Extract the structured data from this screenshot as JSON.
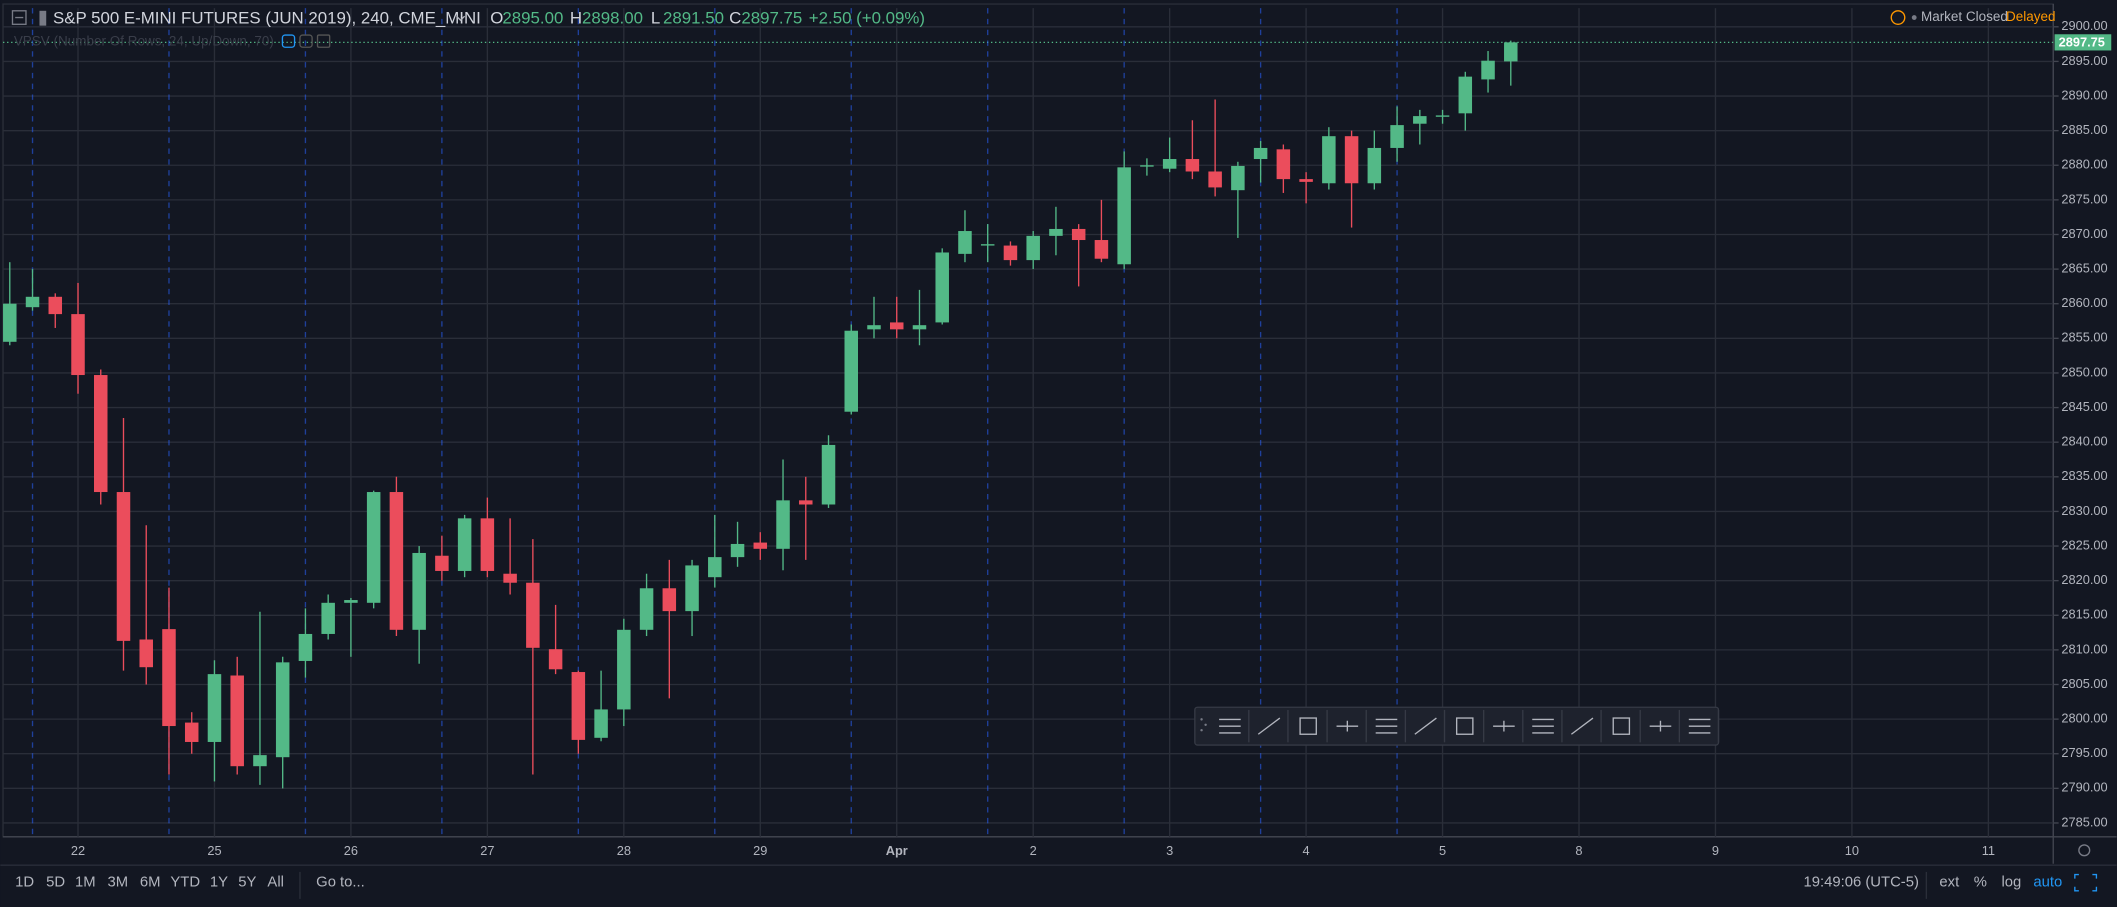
{
  "header": {
    "symbol": "S&P 500 E-MINI FUTURES (JUN 2019), 240, CME_MINI",
    "ohlc": [
      {
        "key": "O",
        "value": "2895.00"
      },
      {
        "key": "H",
        "value": "2898.00"
      },
      {
        "key": "L",
        "value": "2891.50"
      },
      {
        "key": "C",
        "value": "2897.75"
      }
    ],
    "change": "+2.50 (+0.09%)",
    "indicator": "VPSV (Number Of Rows, 24, Up/Down, 70)",
    "status": "Market Closed",
    "delay": "Delayed"
  },
  "chart_data": {
    "type": "candlestick",
    "categories": [
      null,
      null,
      null,
      "22",
      null,
      null,
      null,
      null,
      null,
      "25",
      null,
      null,
      null,
      null,
      null,
      "26",
      null,
      null,
      null,
      null,
      null,
      "27",
      null,
      null,
      null,
      null,
      null,
      "28",
      null,
      null,
      null,
      null,
      null,
      "29",
      null,
      null,
      null,
      null,
      null,
      "Apr",
      null,
      null,
      null,
      null,
      null,
      "2",
      null,
      null,
      null,
      null,
      null,
      "3",
      null,
      null,
      null,
      null,
      null,
      "4",
      null,
      null,
      null,
      null,
      null,
      "5",
      null,
      null,
      null,
      null,
      null,
      "8",
      null,
      null,
      null,
      null,
      null,
      "9",
      null,
      null,
      null,
      null,
      null,
      "10",
      null,
      null,
      null,
      null,
      null,
      "11"
    ],
    "open": [
      2854.5,
      2859.5,
      2861,
      2858.5,
      2849.7,
      2832.8,
      2811.5,
      2813,
      2799.5,
      2796.7,
      2806.3,
      2793.2,
      2794.5,
      2808.4,
      2812.3,
      2816.8,
      2816.8,
      2832.8,
      2812.9,
      2823.6,
      2821.4,
      2829,
      2821,
      2819.7,
      2810.1,
      2806.8,
      2797.3,
      2801.4,
      2812.9,
      2818.9,
      2815.6,
      2820.5,
      2823.4,
      2825.5,
      2824.6,
      2831.6,
      2831,
      2844.4,
      2856.3,
      2857.3,
      2856.3,
      2857.3,
      2867.2,
      2868.4,
      2868.4,
      2866.3,
      2869.8,
      2870.8,
      2869.2,
      2865.7,
      2879.8,
      2879.5,
      2880.9,
      2879.1,
      2876.4,
      2880.9,
      2882.3,
      2878,
      2877.4,
      2884.2,
      2877.4,
      2882.5,
      2886,
      2887,
      2887.5,
      2892.4,
      2895,
      null,
      null,
      null,
      null,
      null,
      null,
      null,
      null,
      null,
      null,
      null,
      null,
      null,
      null,
      null,
      null,
      null,
      null,
      null,
      null,
      null
    ],
    "high": [
      2866,
      2865,
      2861.5,
      2863,
      2850.5,
      2843.5,
      2828,
      2819,
      2801,
      2808.5,
      2809,
      2815.5,
      2809,
      2816,
      2818,
      2817.5,
      2833,
      2835,
      2825,
      2826.5,
      2829.5,
      2832,
      2829,
      2826,
      2816.5,
      2807,
      2807,
      2814.5,
      2821,
      2823,
      2823,
      2829.5,
      2828.5,
      2827,
      2837.5,
      2835,
      2841,
      2857,
      2861,
      2861,
      2862,
      2868,
      2873.5,
      2871.5,
      2869,
      2870.5,
      2874,
      2871.5,
      2875,
      2882,
      2881,
      2884,
      2886.5,
      2889.5,
      2880.5,
      2883.5,
      2883,
      2879,
      2885.5,
      2885,
      2885,
      2888.5,
      2888,
      2888,
      2893.5,
      2896.5,
      2898,
      null,
      null,
      null,
      null,
      null,
      null,
      null,
      null,
      null,
      null,
      null,
      null,
      null,
      null,
      null,
      null,
      null,
      null,
      null,
      null,
      null
    ],
    "low": [
      2854,
      2859,
      2856.5,
      2847,
      2831,
      2807,
      2805,
      2792,
      2795,
      2791,
      2792,
      2790.5,
      2790,
      2806,
      2811.5,
      2809,
      2816,
      2812,
      2808,
      2820,
      2820.5,
      2820.5,
      2818,
      2792,
      2806.5,
      2795,
      2796.8,
      2799,
      2812,
      2803,
      2812,
      2819,
      2822,
      2823,
      2821.5,
      2823,
      2830.5,
      2844,
      2855,
      2855,
      2854,
      2857,
      2866,
      2866,
      2865.5,
      2865,
      2867,
      2862.5,
      2866,
      2865,
      2878.5,
      2879,
      2878,
      2875.5,
      2869.5,
      2877.5,
      2876,
      2874.5,
      2876.5,
      2871,
      2876.5,
      2880.5,
      2883,
      2886,
      2885,
      2890.5,
      2891.5,
      null,
      null,
      null,
      null,
      null,
      null,
      null,
      null,
      null,
      null,
      null,
      null,
      null,
      null,
      null,
      null,
      null,
      null,
      null,
      null,
      null
    ],
    "close": [
      2860,
      2861,
      2858.5,
      2849.7,
      2832.8,
      2811.3,
      2807.5,
      2799,
      2796.7,
      2806.5,
      2793.2,
      2794.8,
      2808.2,
      2812.3,
      2816.8,
      2817.2,
      2832.8,
      2812.9,
      2824,
      2821.4,
      2829,
      2821.4,
      2819.7,
      2810.3,
      2807.2,
      2797,
      2801.4,
      2812.9,
      2818.9,
      2815.6,
      2822.2,
      2823.4,
      2825.3,
      2824.6,
      2831.6,
      2831,
      2839.6,
      2856.1,
      2856.9,
      2856.3,
      2856.9,
      2867.4,
      2870.5,
      2868.6,
      2866.3,
      2869.8,
      2870.8,
      2869.2,
      2866.5,
      2879.7,
      2880,
      2880.9,
      2879.1,
      2876.8,
      2879.9,
      2882.5,
      2878,
      2877.6,
      2884.2,
      2877.4,
      2882.5,
      2885.8,
      2887.1,
      2887.2,
      2892.8,
      2895.1,
      2897.75,
      null,
      null,
      null,
      null,
      null,
      null,
      null,
      null,
      null,
      null,
      null,
      null,
      null,
      null,
      null,
      null,
      null,
      null,
      null,
      null,
      null
    ],
    "up_color": "#53b987",
    "down_color": "#eb4d5c",
    "last_price": 2897.75,
    "ylim": [
      2783,
      2902.7
    ],
    "yticks": [
      {
        "value": 2785,
        "label": "2785.00"
      },
      {
        "value": 2790,
        "label": "2790.00"
      },
      {
        "value": 2795,
        "label": "2795.00"
      },
      {
        "value": 2800,
        "label": "2800.00"
      },
      {
        "value": 2805,
        "label": "2805.00"
      },
      {
        "value": 2810,
        "label": "2810.00"
      },
      {
        "value": 2815,
        "label": "2815.00"
      },
      {
        "value": 2820,
        "label": "2820.00"
      },
      {
        "value": 2825,
        "label": "2825.00"
      },
      {
        "value": 2830,
        "label": "2830.00"
      },
      {
        "value": 2835,
        "label": "2835.00"
      },
      {
        "value": 2840,
        "label": "2840.00"
      },
      {
        "value": 2845,
        "label": "2845.00"
      },
      {
        "value": 2850,
        "label": "2850.00"
      },
      {
        "value": 2855,
        "label": "2855.00"
      },
      {
        "value": 2860,
        "label": "2860.00"
      },
      {
        "value": 2865,
        "label": "2865.00"
      },
      {
        "value": 2870,
        "label": "2870.00"
      },
      {
        "value": 2875,
        "label": "2875.00"
      },
      {
        "value": 2880,
        "label": "2880.00"
      },
      {
        "value": 2885,
        "label": "2885.00"
      },
      {
        "value": 2890,
        "label": "2890.00"
      },
      {
        "value": 2895,
        "label": "2895.00"
      },
      {
        "value": 2900,
        "label": "2900.00"
      }
    ],
    "grid": true
  },
  "footer": {
    "ranges": [
      "1D",
      "5D",
      "1M",
      "3M",
      "6M",
      "YTD",
      "1Y",
      "5Y",
      "All"
    ],
    "goto": "Go to...",
    "time": "19:49:06 (UTC-5)",
    "options": [
      "ext",
      "%",
      "log",
      "auto"
    ]
  }
}
